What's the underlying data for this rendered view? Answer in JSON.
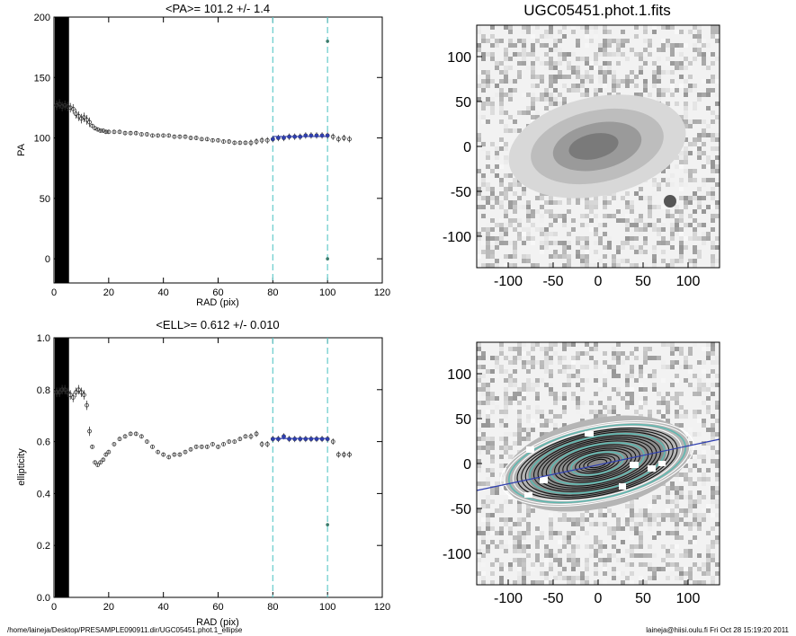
{
  "footer": {
    "left": "/home/laineja/Desktop/PRESAMPLE090911.dir/UGC05451.phot.1_ellipse",
    "right": "laineja@hiisi.oulu.fi  Fri Oct 28 15:19:20 2011"
  },
  "image_panels": {
    "title": "UGC05451.phot.1.fits",
    "x_ticks": [
      "-100",
      "-50",
      "0",
      "50",
      "100"
    ],
    "y_ticks": [
      "100",
      "50",
      "0",
      "-50",
      "-100"
    ]
  },
  "colors": {
    "fit": "#2f3fb0",
    "marker": "#66cccc",
    "points": "#333333",
    "contour": "#5fb8b0"
  },
  "chart_data": [
    {
      "type": "scatter",
      "title": "<PA>= 101.2 +/-   1.4",
      "xlabel": "RAD (pix)",
      "ylabel": "PA",
      "xlim": [
        0,
        120
      ],
      "ylim": [
        -20,
        200
      ],
      "x_ticks": [
        0,
        20,
        40,
        60,
        80,
        100,
        120
      ],
      "y_ticks": [
        0,
        50,
        100,
        150,
        200
      ],
      "fit_range": [
        80,
        100
      ],
      "fit_value": 101.2,
      "outliers": [
        [
          100,
          180
        ],
        [
          100,
          0
        ]
      ],
      "points": [
        [
          1,
          127
        ],
        [
          2,
          128
        ],
        [
          3,
          126
        ],
        [
          4,
          127
        ],
        [
          5,
          126
        ],
        [
          6,
          125
        ],
        [
          7,
          124
        ],
        [
          8,
          120
        ],
        [
          9,
          118
        ],
        [
          10,
          116
        ],
        [
          11,
          117
        ],
        [
          12,
          115
        ],
        [
          13,
          113
        ],
        [
          14,
          110
        ],
        [
          15,
          108
        ],
        [
          16,
          107
        ],
        [
          17,
          106
        ],
        [
          18,
          106
        ],
        [
          19,
          105
        ],
        [
          20,
          105
        ],
        [
          22,
          105
        ],
        [
          24,
          105
        ],
        [
          26,
          104
        ],
        [
          28,
          104
        ],
        [
          30,
          104
        ],
        [
          32,
          103
        ],
        [
          34,
          103
        ],
        [
          36,
          102
        ],
        [
          38,
          102
        ],
        [
          40,
          102
        ],
        [
          42,
          102
        ],
        [
          44,
          101
        ],
        [
          46,
          101
        ],
        [
          48,
          101
        ],
        [
          50,
          100
        ],
        [
          52,
          100
        ],
        [
          54,
          99
        ],
        [
          56,
          99
        ],
        [
          58,
          98
        ],
        [
          60,
          98
        ],
        [
          62,
          97
        ],
        [
          64,
          97
        ],
        [
          66,
          96
        ],
        [
          68,
          96
        ],
        [
          70,
          96
        ],
        [
          72,
          96
        ],
        [
          74,
          97
        ],
        [
          76,
          98
        ],
        [
          78,
          98
        ],
        [
          80,
          99
        ],
        [
          82,
          100
        ],
        [
          84,
          100
        ],
        [
          86,
          101
        ],
        [
          88,
          101
        ],
        [
          90,
          101
        ],
        [
          92,
          102
        ],
        [
          94,
          102
        ],
        [
          96,
          102
        ],
        [
          98,
          102
        ],
        [
          100,
          102
        ],
        [
          102,
          101
        ],
        [
          104,
          99
        ],
        [
          106,
          100
        ],
        [
          108,
          99
        ]
      ]
    },
    {
      "type": "scatter",
      "title": "<ELL>= 0.612 +/-  0.010",
      "xlabel": "RAD (pix)",
      "ylabel": "ellipticity",
      "xlim": [
        0,
        120
      ],
      "ylim": [
        0,
        1
      ],
      "x_ticks": [
        0,
        20,
        40,
        60,
        80,
        100,
        120
      ],
      "y_ticks": [
        0.0,
        0.2,
        0.4,
        0.6,
        0.8,
        1.0
      ],
      "fit_range": [
        80,
        100
      ],
      "fit_value": 0.612,
      "outliers": [
        [
          100,
          0.28
        ]
      ],
      "points": [
        [
          1,
          0.79
        ],
        [
          2,
          0.79
        ],
        [
          3,
          0.8
        ],
        [
          4,
          0.8
        ],
        [
          5,
          0.79
        ],
        [
          6,
          0.78
        ],
        [
          7,
          0.77
        ],
        [
          8,
          0.79
        ],
        [
          9,
          0.8
        ],
        [
          10,
          0.79
        ],
        [
          11,
          0.78
        ],
        [
          12,
          0.74
        ],
        [
          13,
          0.64
        ],
        [
          14,
          0.58
        ],
        [
          15,
          0.52
        ],
        [
          16,
          0.51
        ],
        [
          17,
          0.52
        ],
        [
          18,
          0.53
        ],
        [
          19,
          0.55
        ],
        [
          20,
          0.56
        ],
        [
          22,
          0.59
        ],
        [
          24,
          0.61
        ],
        [
          26,
          0.62
        ],
        [
          28,
          0.63
        ],
        [
          30,
          0.63
        ],
        [
          32,
          0.62
        ],
        [
          34,
          0.6
        ],
        [
          36,
          0.58
        ],
        [
          38,
          0.56
        ],
        [
          40,
          0.55
        ],
        [
          42,
          0.54
        ],
        [
          44,
          0.55
        ],
        [
          46,
          0.55
        ],
        [
          48,
          0.56
        ],
        [
          50,
          0.57
        ],
        [
          52,
          0.58
        ],
        [
          54,
          0.58
        ],
        [
          56,
          0.58
        ],
        [
          58,
          0.59
        ],
        [
          60,
          0.58
        ],
        [
          62,
          0.59
        ],
        [
          64,
          0.6
        ],
        [
          66,
          0.6
        ],
        [
          68,
          0.61
        ],
        [
          70,
          0.62
        ],
        [
          72,
          0.62
        ],
        [
          74,
          0.63
        ],
        [
          76,
          0.59
        ],
        [
          78,
          0.59
        ],
        [
          80,
          0.61
        ],
        [
          82,
          0.61
        ],
        [
          84,
          0.62
        ],
        [
          86,
          0.61
        ],
        [
          88,
          0.61
        ],
        [
          90,
          0.61
        ],
        [
          92,
          0.61
        ],
        [
          94,
          0.61
        ],
        [
          96,
          0.61
        ],
        [
          98,
          0.61
        ],
        [
          100,
          0.61
        ],
        [
          102,
          0.6
        ],
        [
          104,
          0.55
        ],
        [
          106,
          0.55
        ],
        [
          108,
          0.55
        ]
      ]
    }
  ]
}
